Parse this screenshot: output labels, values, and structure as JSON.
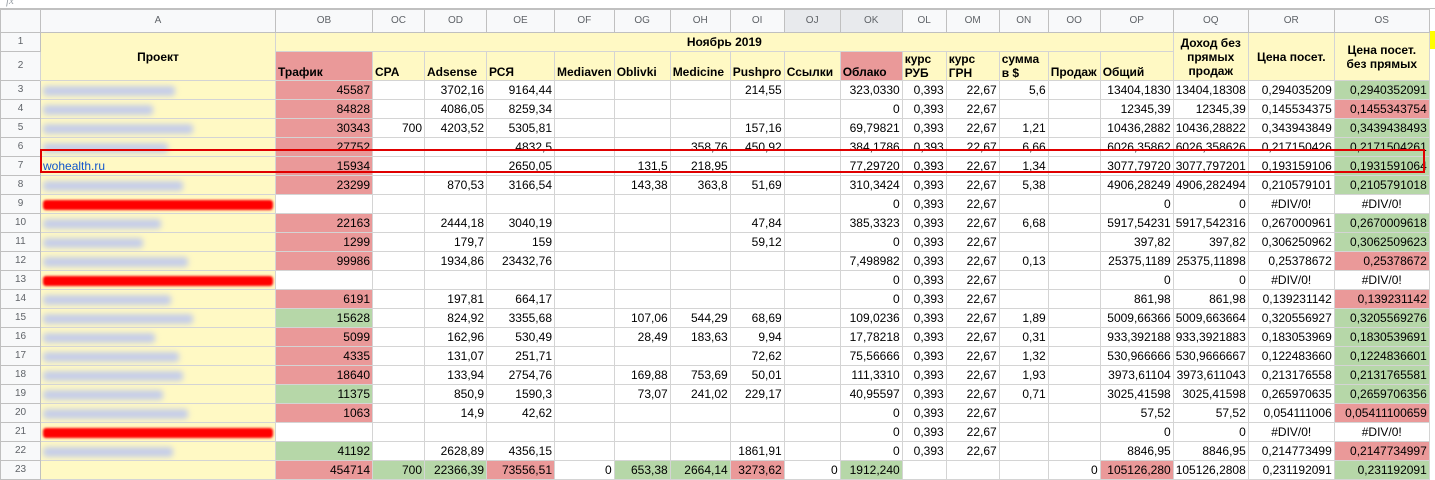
{
  "formula_bar": {
    "fx_label": "fx"
  },
  "columns": [
    "A",
    "OB",
    "OC",
    "OD",
    "OE",
    "OF",
    "OG",
    "OH",
    "OI",
    "OJ",
    "OK",
    "OL",
    "OM",
    "ON",
    "OO",
    "OP",
    "OQ",
    "OR",
    "OS"
  ],
  "row_numbers": [
    "1",
    "2",
    "3",
    "4",
    "5",
    "6",
    "7",
    "8",
    "9",
    "10",
    "11",
    "12",
    "13",
    "14",
    "15",
    "16",
    "17",
    "18",
    "19",
    "20",
    "21",
    "22",
    "23"
  ],
  "header": {
    "project": "Проект",
    "month": "Ноябрь 2019",
    "income_no_direct": "Доход без прямых продаж",
    "price_visit": "Цена посет.",
    "price_visit_no_direct": "Цена посет. без прямых",
    "row2": [
      "Трафик",
      "CPA",
      "Adsense",
      "РСЯ",
      "Mediaven",
      "Oblivki",
      "Medicine",
      "Pushpro",
      "Ссылки",
      "Облако",
      "курс РУБ",
      "курс ГРН",
      "сумма в $",
      "Продаж",
      "Общий"
    ]
  },
  "highlight_project": "wohealth.ru",
  "rows": [
    {
      "a": "blur",
      "c": [
        "45587",
        "",
        "3702,16",
        "9164,44",
        "",
        "",
        "",
        "214,55",
        "",
        "323,0330",
        "0,393",
        "22,67",
        "5,6",
        "",
        "13404,1830",
        "13404,18308",
        "0,294035209",
        "0,2940352091"
      ],
      "tr": "r",
      "os": "g",
      "or": ""
    },
    {
      "a": "blur",
      "c": [
        "84828",
        "",
        "4086,05",
        "8259,34",
        "",
        "",
        "",
        "",
        "",
        "0",
        "0,393",
        "22,67",
        "",
        "",
        "12345,39",
        "12345,39",
        "0,145534375",
        "0,1455343754"
      ],
      "tr": "r",
      "os": "r",
      "or": ""
    },
    {
      "a": "blur",
      "c": [
        "30343",
        "700",
        "4203,52",
        "5305,81",
        "",
        "",
        "",
        "157,16",
        "",
        "69,79821",
        "0,393",
        "22,67",
        "1,21",
        "",
        "10436,2882",
        "10436,28822",
        "0,343943849",
        "0,3439438493"
      ],
      "tr": "r",
      "os": "g",
      "or": ""
    },
    {
      "a": "blur",
      "c": [
        "27752",
        "",
        "",
        "4832,5",
        "",
        "",
        "358,76",
        "450,92",
        "",
        "384,1786",
        "0,393",
        "22,67",
        "6,66",
        "",
        "6026,35862",
        "6026,358626",
        "0,217150426",
        "0,2171504261"
      ],
      "tr": "r",
      "os": "g",
      "or": ""
    },
    {
      "a": "link",
      "c": [
        "15934",
        "",
        "",
        "2650,05",
        "",
        "131,5",
        "218,95",
        "",
        "",
        "77,29720",
        "0,393",
        "22,67",
        "1,34",
        "",
        "3077,79720",
        "3077,797201",
        "0,193159106",
        "0,1931591064"
      ],
      "tr": "r",
      "os": "g",
      "or": ""
    },
    {
      "a": "blur",
      "c": [
        "23299",
        "",
        "870,53",
        "3166,54",
        "",
        "143,38",
        "363,8",
        "51,69",
        "",
        "310,3424",
        "0,393",
        "22,67",
        "5,38",
        "",
        "4906,28249",
        "4906,282494",
        "0,210579101",
        "0,2105791018"
      ],
      "tr": "r",
      "os": "g",
      "or": ""
    },
    {
      "a": "red",
      "c": [
        "",
        "",
        "",
        "",
        "",
        "",
        "",
        "",
        "",
        "0",
        "0,393",
        "22,67",
        "",
        "",
        "0",
        "0",
        "#DIV/0!",
        "#DIV/0!"
      ],
      "tr": "",
      "os": "",
      "or": ""
    },
    {
      "a": "blur",
      "c": [
        "22163",
        "",
        "2444,18",
        "3040,19",
        "",
        "",
        "",
        "47,84",
        "",
        "385,3323",
        "0,393",
        "22,67",
        "6,68",
        "",
        "5917,54231",
        "5917,542316",
        "0,267000961",
        "0,2670009618"
      ],
      "tr": "r",
      "os": "g",
      "or": ""
    },
    {
      "a": "blur",
      "c": [
        "1299",
        "",
        "179,7",
        "159",
        "",
        "",
        "",
        "59,12",
        "",
        "0",
        "0,393",
        "22,67",
        "",
        "",
        "397,82",
        "397,82",
        "0,306250962",
        "0,3062509623"
      ],
      "tr": "r",
      "os": "g",
      "or": ""
    },
    {
      "a": "blur",
      "c": [
        "99986",
        "",
        "1934,86",
        "23432,76",
        "",
        "",
        "",
        "",
        "",
        "7,498982",
        "0,393",
        "22,67",
        "0,13",
        "",
        "25375,1189",
        "25375,11898",
        "0,25378672",
        "0,25378672"
      ],
      "tr": "r",
      "os": "r",
      "or": ""
    },
    {
      "a": "red",
      "c": [
        "",
        "",
        "",
        "",
        "",
        "",
        "",
        "",
        "",
        "0",
        "0,393",
        "22,67",
        "",
        "",
        "0",
        "0",
        "#DIV/0!",
        "#DIV/0!"
      ],
      "tr": "",
      "os": "",
      "or": ""
    },
    {
      "a": "blur",
      "c": [
        "6191",
        "",
        "197,81",
        "664,17",
        "",
        "",
        "",
        "",
        "",
        "0",
        "0,393",
        "22,67",
        "",
        "",
        "861,98",
        "861,98",
        "0,139231142",
        "0,139231142"
      ],
      "tr": "r",
      "os": "r",
      "or": ""
    },
    {
      "a": "blur",
      "c": [
        "15628",
        "",
        "824,92",
        "3355,68",
        "",
        "107,06",
        "544,29",
        "68,69",
        "",
        "109,0236",
        "0,393",
        "22,67",
        "1,89",
        "",
        "5009,66366",
        "5009,663664",
        "0,320556927",
        "0,3205569276"
      ],
      "tr": "g",
      "os": "g",
      "or": ""
    },
    {
      "a": "blur",
      "c": [
        "5099",
        "",
        "162,96",
        "530,49",
        "",
        "28,49",
        "183,63",
        "9,94",
        "",
        "17,78218",
        "0,393",
        "22,67",
        "0,31",
        "",
        "933,392188",
        "933,3921883",
        "0,183053969",
        "0,1830539691"
      ],
      "tr": "r",
      "os": "g",
      "or": ""
    },
    {
      "a": "blur",
      "c": [
        "4335",
        "",
        "131,07",
        "251,71",
        "",
        "",
        "",
        "72,62",
        "",
        "75,56666",
        "0,393",
        "22,67",
        "1,32",
        "",
        "530,966666",
        "530,9666667",
        "0,122483660",
        "0,1224836601"
      ],
      "tr": "r",
      "os": "g",
      "or": ""
    },
    {
      "a": "blur",
      "c": [
        "18640",
        "",
        "133,94",
        "2754,76",
        "",
        "169,88",
        "753,69",
        "50,01",
        "",
        "111,3310",
        "0,393",
        "22,67",
        "1,93",
        "",
        "3973,61104",
        "3973,611043",
        "0,213176558",
        "0,2131765581"
      ],
      "tr": "r",
      "os": "g",
      "or": ""
    },
    {
      "a": "blur",
      "c": [
        "11375",
        "",
        "850,9",
        "1590,3",
        "",
        "73,07",
        "241,02",
        "229,17",
        "",
        "40,95597",
        "0,393",
        "22,67",
        "0,71",
        "",
        "3025,41598",
        "3025,41598",
        "0,265970635",
        "0,2659706356"
      ],
      "tr": "g",
      "os": "g",
      "or": ""
    },
    {
      "a": "blur",
      "c": [
        "1063",
        "",
        "14,9",
        "42,62",
        "",
        "",
        "",
        "",
        "",
        "0",
        "0,393",
        "22,67",
        "",
        "",
        "57,52",
        "57,52",
        "0,054111006",
        "0,05411100659"
      ],
      "tr": "r",
      "os": "r",
      "or": ""
    },
    {
      "a": "red",
      "c": [
        "",
        "",
        "",
        "",
        "",
        "",
        "",
        "",
        "",
        "0",
        "0,393",
        "22,67",
        "",
        "",
        "0",
        "0",
        "#DIV/0!",
        "#DIV/0!"
      ],
      "tr": "",
      "os": "",
      "or": ""
    },
    {
      "a": "blur",
      "c": [
        "41192",
        "",
        "2628,89",
        "4356,15",
        "",
        "",
        "",
        "1861,91",
        "",
        "0",
        "0,393",
        "22,67",
        "",
        "",
        "8846,95",
        "8846,95",
        "0,214773499",
        "0,2147734997"
      ],
      "tr": "g",
      "os": "r",
      "or": ""
    },
    {
      "a": "total",
      "c": [
        "454714",
        "700",
        "22366,39",
        "73556,51",
        "0",
        "653,38",
        "2664,14",
        "3273,62",
        "0",
        "1912,240",
        "",
        "",
        "",
        "0",
        "105126,280",
        "105126,2808",
        "0,231192091",
        "0,231192091"
      ],
      "tr": "r",
      "os": "g",
      "or": ""
    }
  ]
}
